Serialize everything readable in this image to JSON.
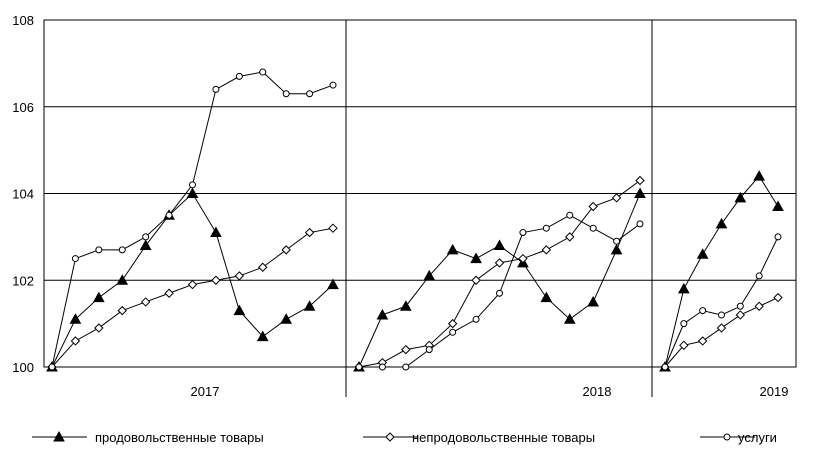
{
  "chart_data": {
    "type": "line",
    "title": "",
    "xlabel": "",
    "ylabel": "",
    "ylim": [
      100,
      108
    ],
    "yticks": [
      "100",
      "102",
      "104",
      "106",
      "108"
    ],
    "grid": true,
    "legend_position": "bottom",
    "line_color": "#000000",
    "groups": [
      {
        "label": "2017",
        "months": 13
      },
      {
        "label": "2018",
        "months": 13
      },
      {
        "label": "2019",
        "months": 7
      }
    ],
    "series": [
      {
        "name": "продовольственные товары",
        "marker": "triangle",
        "values": [
          [
            100,
            101.1,
            101.6,
            102.0,
            102.8,
            103.5,
            104.0,
            103.1,
            101.3,
            100.7,
            101.1,
            101.4,
            101.9
          ],
          [
            100,
            101.2,
            101.4,
            102.1,
            102.7,
            102.5,
            102.8,
            102.4,
            101.6,
            101.1,
            101.5,
            102.7,
            104.0
          ],
          [
            100,
            101.8,
            102.6,
            103.3,
            103.9,
            104.4,
            103.7
          ]
        ]
      },
      {
        "name": "непродовольственные товары",
        "marker": "diamond",
        "values": [
          [
            100,
            100.6,
            100.9,
            101.3,
            101.5,
            101.7,
            101.9,
            102.0,
            102.1,
            102.3,
            102.7,
            103.1,
            103.2
          ],
          [
            100,
            100.1,
            100.4,
            100.5,
            101.0,
            102.0,
            102.4,
            102.5,
            102.7,
            103.0,
            103.7,
            103.9,
            104.3
          ],
          [
            100,
            100.5,
            100.6,
            100.9,
            101.2,
            101.4,
            101.6
          ]
        ]
      },
      {
        "name": "услуги",
        "marker": "circle",
        "values": [
          [
            100,
            102.5,
            102.7,
            102.7,
            103.0,
            103.5,
            104.2,
            106.4,
            106.7,
            106.8,
            106.3,
            106.3,
            106.5
          ],
          [
            100,
            100.0,
            100.0,
            100.4,
            100.8,
            101.1,
            101.7,
            103.1,
            103.2,
            103.5,
            103.2,
            102.9,
            103.3
          ],
          [
            100,
            101.0,
            101.3,
            101.2,
            101.4,
            102.1,
            103.0
          ]
        ]
      }
    ]
  }
}
